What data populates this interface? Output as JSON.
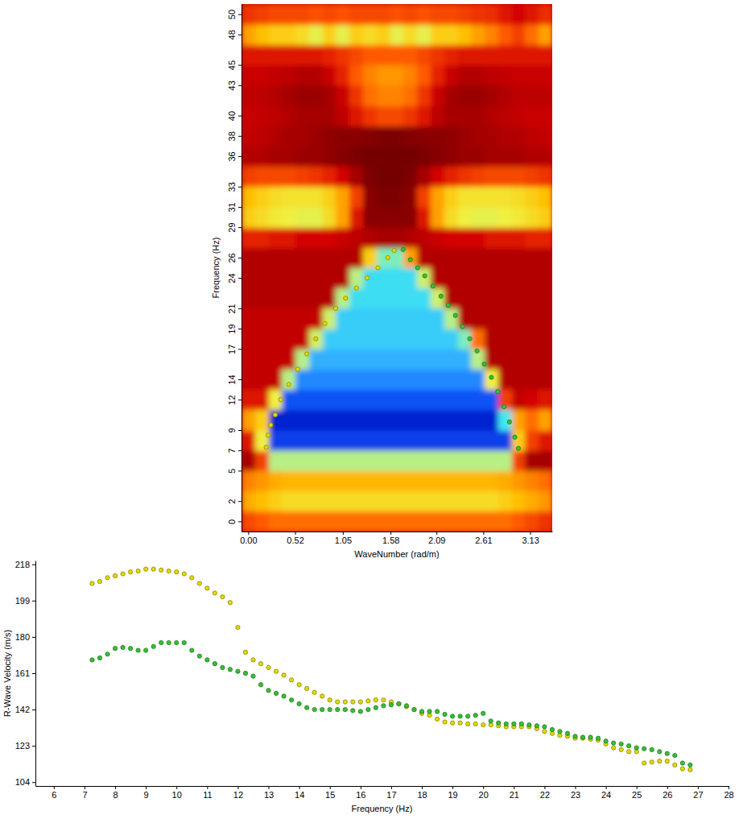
{
  "chart_data": [
    {
      "type": "heatmap",
      "xlabel": "WaveNumber (rad/m)",
      "ylabel": "Frequency (Hz)",
      "xlim": [
        -0.075,
        3.375
      ],
      "ylim": [
        -1,
        51
      ],
      "xticks": [
        {
          "value": 0,
          "label": "0.00"
        },
        0.52,
        1.05,
        1.58,
        2.09,
        2.61,
        3.13
      ],
      "yticks": [
        0,
        2,
        5,
        7,
        9,
        12,
        14,
        17,
        19,
        21,
        24,
        26,
        29,
        31,
        33,
        36,
        38,
        40,
        43,
        45,
        48,
        50
      ],
      "grid": false,
      "x": [
        0,
        0.15,
        0.3,
        0.45,
        0.6,
        0.75,
        0.9,
        1.05,
        1.2,
        1.35,
        1.5,
        1.65,
        1.8,
        1.95,
        2.1,
        2.25,
        2.4,
        2.55,
        2.7,
        2.85,
        3,
        3.15,
        3.3
      ],
      "y": [
        0,
        2,
        4,
        6,
        8,
        10,
        12,
        14,
        16,
        18,
        20,
        22,
        24,
        26,
        28,
        30,
        32,
        34,
        36,
        38,
        40,
        42,
        44,
        46,
        48,
        50
      ],
      "zlim": [
        0,
        1
      ],
      "cells": [
        [
          0.36,
          0.38,
          0.4,
          0.4,
          0.4,
          0.4,
          0.4,
          0.4,
          0.4,
          0.4,
          0.4,
          0.4,
          0.4,
          0.4,
          0.4,
          0.4,
          0.4,
          0.4,
          0.4,
          0.4,
          0.38,
          0.36,
          0.34
        ],
        [
          0.46,
          0.48,
          0.5,
          0.52,
          0.52,
          0.52,
          0.52,
          0.52,
          0.52,
          0.52,
          0.52,
          0.52,
          0.52,
          0.52,
          0.52,
          0.52,
          0.52,
          0.52,
          0.52,
          0.5,
          0.48,
          0.46,
          0.44
        ],
        [
          0.42,
          0.44,
          0.46,
          0.47,
          0.47,
          0.47,
          0.47,
          0.47,
          0.47,
          0.47,
          0.47,
          0.47,
          0.47,
          0.47,
          0.47,
          0.47,
          0.47,
          0.47,
          0.47,
          0.46,
          0.44,
          0.42,
          0.4
        ],
        [
          0.2,
          0.35,
          0.6,
          0.6,
          0.6,
          0.6,
          0.6,
          0.6,
          0.6,
          0.6,
          0.6,
          0.6,
          0.6,
          0.6,
          0.6,
          0.6,
          0.6,
          0.6,
          0.6,
          0.6,
          0.35,
          0.2,
          0.2
        ],
        [
          0.3,
          0.55,
          0.95,
          0.95,
          0.95,
          0.95,
          0.95,
          0.95,
          0.95,
          0.95,
          0.95,
          0.95,
          0.95,
          0.95,
          0.95,
          0.95,
          0.95,
          0.95,
          0.95,
          0.95,
          0.5,
          0.35,
          0.3
        ],
        [
          0.45,
          0.5,
          1,
          1,
          1,
          1,
          1,
          1,
          1,
          1,
          1,
          1,
          1,
          1,
          1,
          1,
          1,
          1,
          1,
          0.7,
          0.45,
          0.4,
          0.45
        ],
        [
          0.3,
          0.3,
          0.55,
          0.92,
          0.92,
          0.92,
          0.92,
          0.92,
          0.92,
          0.92,
          0.92,
          0.92,
          0.92,
          0.92,
          0.92,
          0.92,
          0.92,
          0.92,
          0.92,
          0.35,
          0.25,
          0.28,
          0.3
        ],
        [
          0.25,
          0.25,
          0.25,
          0.6,
          0.85,
          0.85,
          0.85,
          0.85,
          0.85,
          0.85,
          0.85,
          0.85,
          0.85,
          0.85,
          0.85,
          0.85,
          0.85,
          0.85,
          0.55,
          0.22,
          0.22,
          0.22,
          0.22
        ],
        [
          0.25,
          0.25,
          0.25,
          0.25,
          0.6,
          0.8,
          0.8,
          0.8,
          0.8,
          0.8,
          0.8,
          0.8,
          0.8,
          0.8,
          0.8,
          0.8,
          0.8,
          0.6,
          0.22,
          0.22,
          0.22,
          0.22,
          0.22
        ],
        [
          0.25,
          0.25,
          0.25,
          0.25,
          0.25,
          0.58,
          0.75,
          0.75,
          0.75,
          0.75,
          0.75,
          0.75,
          0.75,
          0.75,
          0.75,
          0.75,
          0.65,
          0.4,
          0.22,
          0.22,
          0.22,
          0.22,
          0.22
        ],
        [
          0.25,
          0.25,
          0.25,
          0.25,
          0.25,
          0.25,
          0.58,
          0.75,
          0.75,
          0.75,
          0.75,
          0.75,
          0.75,
          0.75,
          0.75,
          0.6,
          0.22,
          0.22,
          0.22,
          0.22,
          0.22,
          0.22,
          0.22
        ],
        [
          0.22,
          0.22,
          0.22,
          0.22,
          0.22,
          0.22,
          0.22,
          0.6,
          0.72,
          0.72,
          0.72,
          0.72,
          0.72,
          0.72,
          0.58,
          0.22,
          0.22,
          0.22,
          0.22,
          0.22,
          0.22,
          0.22,
          0.22
        ],
        [
          0.22,
          0.22,
          0.22,
          0.22,
          0.22,
          0.22,
          0.22,
          0.22,
          0.6,
          0.72,
          0.72,
          0.72,
          0.72,
          0.58,
          0.22,
          0.22,
          0.22,
          0.22,
          0.22,
          0.22,
          0.22,
          0.22,
          0.22
        ],
        [
          0.22,
          0.22,
          0.22,
          0.22,
          0.22,
          0.22,
          0.22,
          0.22,
          0.22,
          0.5,
          0.65,
          0.65,
          0.45,
          0.22,
          0.22,
          0.22,
          0.22,
          0.22,
          0.22,
          0.22,
          0.22,
          0.22,
          0.22
        ],
        [
          0.32,
          0.32,
          0.3,
          0.3,
          0.28,
          0.28,
          0.28,
          0.26,
          0.24,
          0.22,
          0.2,
          0.2,
          0.22,
          0.24,
          0.26,
          0.28,
          0.28,
          0.28,
          0.3,
          0.3,
          0.3,
          0.32,
          0.32
        ],
        [
          0.5,
          0.52,
          0.54,
          0.55,
          0.56,
          0.56,
          0.52,
          0.45,
          0.3,
          0.15,
          0.15,
          0.15,
          0.15,
          0.3,
          0.45,
          0.52,
          0.55,
          0.56,
          0.56,
          0.55,
          0.54,
          0.52,
          0.5
        ],
        [
          0.48,
          0.5,
          0.52,
          0.53,
          0.53,
          0.53,
          0.5,
          0.45,
          0.35,
          0.15,
          0.12,
          0.12,
          0.15,
          0.35,
          0.45,
          0.5,
          0.53,
          0.53,
          0.53,
          0.53,
          0.52,
          0.5,
          0.48
        ],
        [
          0.35,
          0.36,
          0.36,
          0.36,
          0.35,
          0.34,
          0.32,
          0.28,
          0.2,
          0.12,
          0.1,
          0.1,
          0.12,
          0.2,
          0.28,
          0.32,
          0.34,
          0.35,
          0.36,
          0.36,
          0.36,
          0.35,
          0.34
        ],
        [
          0.22,
          0.22,
          0.2,
          0.2,
          0.18,
          0.18,
          0.16,
          0.14,
          0.12,
          0.1,
          0.1,
          0.1,
          0.1,
          0.12,
          0.14,
          0.16,
          0.18,
          0.18,
          0.2,
          0.2,
          0.2,
          0.22,
          0.22
        ],
        [
          0.25,
          0.24,
          0.22,
          0.2,
          0.2,
          0.18,
          0.16,
          0.15,
          0.15,
          0.14,
          0.12,
          0.12,
          0.14,
          0.15,
          0.15,
          0.16,
          0.18,
          0.2,
          0.2,
          0.22,
          0.22,
          0.24,
          0.25
        ],
        [
          0.26,
          0.25,
          0.24,
          0.22,
          0.2,
          0.2,
          0.2,
          0.24,
          0.3,
          0.34,
          0.36,
          0.36,
          0.34,
          0.3,
          0.24,
          0.2,
          0.2,
          0.2,
          0.22,
          0.24,
          0.25,
          0.26,
          0.26
        ],
        [
          0.24,
          0.24,
          0.22,
          0.2,
          0.18,
          0.18,
          0.2,
          0.26,
          0.34,
          0.4,
          0.42,
          0.42,
          0.4,
          0.34,
          0.26,
          0.2,
          0.18,
          0.18,
          0.2,
          0.22,
          0.24,
          0.24,
          0.24
        ],
        [
          0.26,
          0.26,
          0.25,
          0.24,
          0.22,
          0.22,
          0.26,
          0.32,
          0.38,
          0.42,
          0.44,
          0.44,
          0.42,
          0.38,
          0.32,
          0.26,
          0.22,
          0.22,
          0.24,
          0.25,
          0.26,
          0.26,
          0.26
        ],
        [
          0.3,
          0.3,
          0.3,
          0.3,
          0.3,
          0.3,
          0.32,
          0.34,
          0.36,
          0.38,
          0.38,
          0.38,
          0.38,
          0.36,
          0.34,
          0.32,
          0.3,
          0.3,
          0.3,
          0.3,
          0.3,
          0.3,
          0.3
        ],
        [
          0.45,
          0.48,
          0.5,
          0.5,
          0.52,
          0.56,
          0.5,
          0.56,
          0.5,
          0.52,
          0.5,
          0.56,
          0.52,
          0.56,
          0.5,
          0.5,
          0.48,
          0.45,
          0.42,
          0.38,
          0.35,
          0.4,
          0.45
        ],
        [
          0.34,
          0.35,
          0.36,
          0.36,
          0.36,
          0.37,
          0.36,
          0.37,
          0.36,
          0.36,
          0.36,
          0.37,
          0.36,
          0.37,
          0.36,
          0.36,
          0.35,
          0.34,
          0.33,
          0.3,
          0.28,
          0.3,
          0.33
        ]
      ],
      "series": [
        {
          "type": "scatter",
          "color": "#e2d800",
          "marker": "circle",
          "x": [
            0.2,
            0.22,
            0.25,
            0.3,
            0.36,
            0.45,
            0.55,
            0.65,
            0.75,
            0.85,
            0.97,
            1.08,
            1.2,
            1.32,
            1.44,
            1.55,
            1.62
          ],
          "values": [
            7.3,
            8.5,
            9.5,
            10.5,
            12,
            13.5,
            15,
            16.5,
            18,
            19.5,
            21,
            22,
            23,
            24,
            25,
            26,
            26.7
          ]
        },
        {
          "type": "scatter",
          "color": "#36c036",
          "marker": "circle",
          "x": [
            1.72,
            1.8,
            1.88,
            1.96,
            2.05,
            2.14,
            2.22,
            2.3,
            2.38,
            2.46,
            2.54,
            2.62,
            2.7,
            2.77,
            2.84,
            2.9,
            2.96,
            3.0
          ],
          "values": [
            26.8,
            25.8,
            25,
            24.2,
            23.2,
            22.2,
            21.3,
            20.3,
            19.2,
            18,
            16.8,
            15.5,
            14.2,
            12.8,
            11.3,
            9.8,
            8.3,
            7.2
          ]
        }
      ]
    },
    {
      "type": "scatter",
      "xlabel": "Frequency (Hz)",
      "ylabel": "R-Wave Velocity (m/s)",
      "xlim": [
        5.4,
        28
      ],
      "ylim": [
        102,
        220
      ],
      "xticks": [
        6,
        7,
        8,
        9,
        10,
        11,
        12,
        13,
        14,
        15,
        16,
        17,
        18,
        19,
        20,
        21,
        22,
        23,
        24,
        25,
        26,
        27,
        28
      ],
      "yticks": [
        104,
        123,
        142,
        161,
        180,
        199,
        218
      ],
      "grid": false,
      "x": [
        7.25,
        7.5,
        7.75,
        8,
        8.25,
        8.5,
        8.75,
        9,
        9.25,
        9.5,
        9.75,
        10,
        10.25,
        10.5,
        10.75,
        11,
        11.25,
        11.5,
        11.75,
        12,
        12.25,
        12.5,
        12.75,
        13,
        13.25,
        13.5,
        13.75,
        14,
        14.25,
        14.5,
        14.75,
        15,
        15.25,
        15.5,
        15.75,
        16,
        16.25,
        16.5,
        16.75,
        17,
        17.25,
        17.5,
        17.75,
        18,
        18.25,
        18.5,
        18.75,
        19,
        19.25,
        19.5,
        19.75,
        20,
        20.25,
        20.5,
        20.75,
        21,
        21.25,
        21.5,
        21.75,
        22,
        22.25,
        22.5,
        22.75,
        23,
        23.25,
        23.5,
        23.75,
        24,
        24.25,
        24.5,
        24.75,
        25,
        25.25,
        25.5,
        25.75,
        26,
        26.25,
        26.5,
        26.75
      ],
      "series": [
        {
          "color": "#e2d800",
          "marker": "circle",
          "values": [
            208,
            209,
            211,
            212,
            213,
            214,
            214.5,
            215.5,
            215.5,
            215,
            214.5,
            214,
            213,
            211,
            208,
            205.5,
            203,
            201,
            198,
            185,
            172,
            168,
            166,
            164,
            162,
            160,
            157.5,
            155,
            153,
            151,
            149,
            147,
            146,
            146,
            146,
            146,
            146.5,
            147,
            147,
            146,
            145,
            143.5,
            142,
            140,
            139,
            137,
            135.5,
            135,
            135,
            134.5,
            134.5,
            134,
            134,
            133.5,
            133,
            133,
            133,
            133,
            132,
            130.5,
            129.5,
            128.5,
            128,
            127,
            127,
            126.5,
            126,
            124,
            122,
            121,
            120,
            120,
            114,
            114.5,
            115,
            115,
            113,
            111,
            110.5
          ]
        },
        {
          "color": "#36c036",
          "marker": "circle",
          "values": [
            168,
            169,
            171,
            174,
            174.5,
            174,
            173,
            173,
            175,
            177,
            177,
            177,
            177,
            173,
            170,
            168,
            166,
            164,
            163,
            162,
            161,
            159.5,
            155,
            152,
            150.5,
            149,
            147,
            145,
            143,
            142,
            142,
            142,
            142,
            142,
            141.5,
            141,
            142,
            143,
            144,
            144.5,
            145,
            144,
            142,
            141,
            141,
            141,
            139.5,
            138.5,
            138.5,
            138.5,
            139,
            140,
            136,
            135,
            134.5,
            134.5,
            134.5,
            134,
            133.5,
            133,
            131.5,
            130.5,
            129.5,
            128,
            127.5,
            127.5,
            127,
            125.5,
            124.5,
            124,
            123,
            122,
            121.5,
            121,
            120,
            119,
            118,
            114,
            113
          ]
        }
      ]
    }
  ]
}
